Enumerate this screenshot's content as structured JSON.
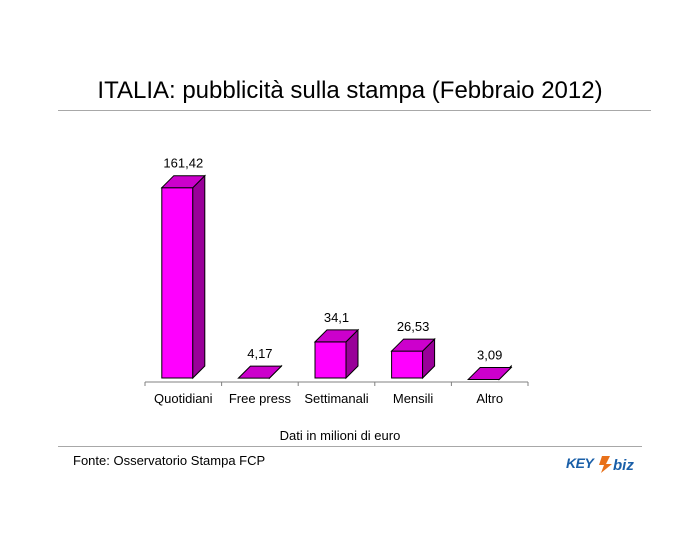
{
  "title": "ITALIA: pubblicità sulla stampa (Febbraio 2012)",
  "caption": "Dati in milioni di euro",
  "source": "Fonte: Osservatorio Stampa FCP",
  "logo": {
    "text_left": "KEY",
    "text_right": "biz",
    "color_left": "#1a5fa8",
    "color_right": "#1a5fa8",
    "accent": "#e8711a"
  },
  "chart_data": {
    "type": "bar",
    "categories": [
      "Quotidiani",
      "Free press",
      "Settimanali",
      "Mensili",
      "Altro"
    ],
    "values": [
      161.42,
      4.17,
      34.1,
      26.53,
      3.09
    ],
    "value_labels": [
      "161,42",
      "4,17",
      "34,1",
      "26,53",
      "3,09"
    ],
    "ylim": [
      0,
      180
    ],
    "grid": false,
    "legend": "none",
    "style": "3d-column",
    "colors": {
      "front": "#ff00ff",
      "side": "#990099",
      "top": "#cc00cc",
      "axis": "#808080",
      "edge": "#000000"
    }
  }
}
